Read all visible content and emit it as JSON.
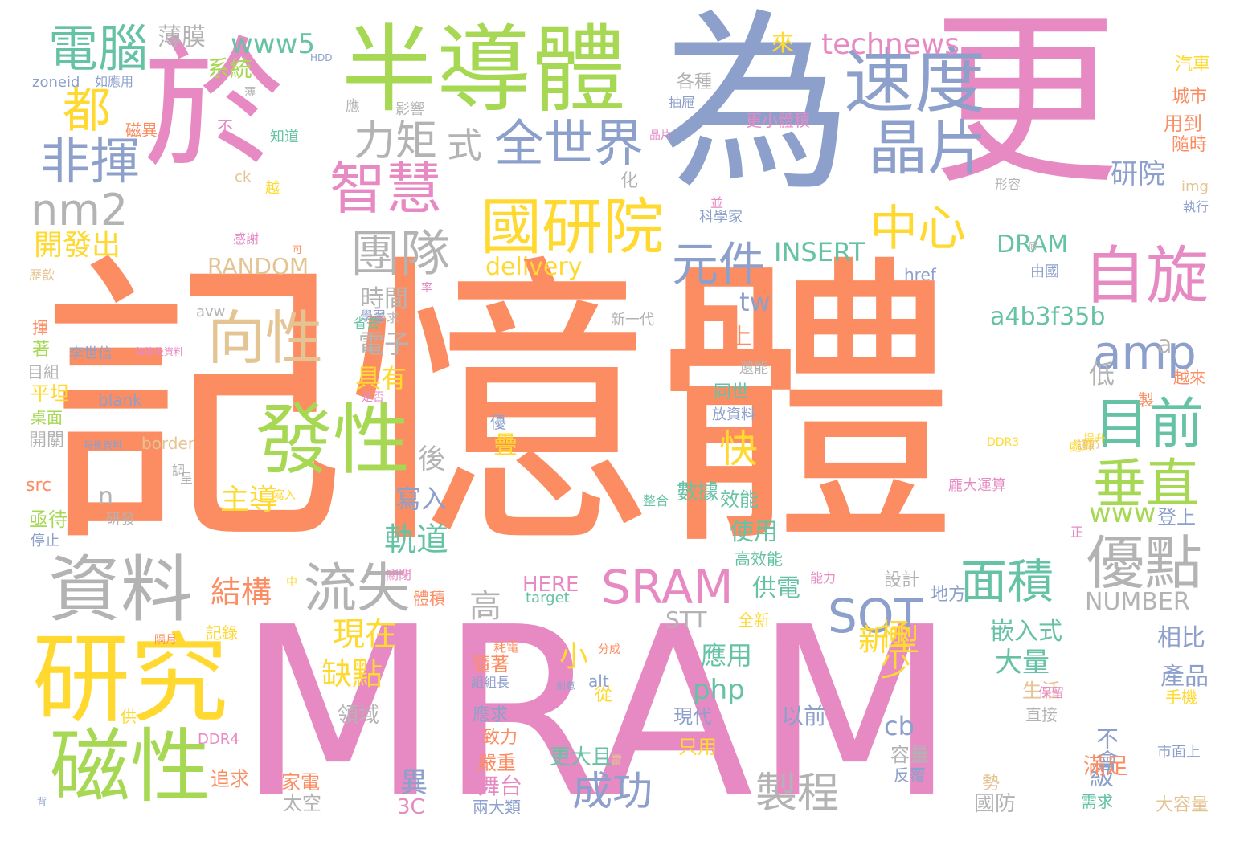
{
  "palette": {
    "orange": "#fc8d62",
    "pink": "#e78ac3",
    "blue": "#8da0cb",
    "green": "#a6d854",
    "yellow": "#ffd92f",
    "tan": "#e5c494",
    "gray": "#b3b3b3",
    "teal": "#66c2a5"
  },
  "words": [
    {
      "text": "記憶體",
      "color": "#fc8d62"
    },
    {
      "text": "MRAM",
      "color": "#e78ac3"
    },
    {
      "text": "為",
      "color": "#8da0cb"
    },
    {
      "text": "更",
      "color": "#e78ac3"
    },
    {
      "text": "於",
      "color": "#e78ac3"
    },
    {
      "text": "半導體",
      "color": "#a6d854"
    },
    {
      "text": "速度",
      "color": "#8da0cb"
    },
    {
      "text": "晶片",
      "color": "#8da0cb"
    },
    {
      "text": "電腦",
      "color": "#66c2a5"
    },
    {
      "text": "都",
      "color": "#ffd92f"
    },
    {
      "text": "非揮",
      "color": "#8da0cb"
    },
    {
      "text": "nm2",
      "color": "#b3b3b3"
    },
    {
      "text": "力矩",
      "color": "#b3b3b3"
    },
    {
      "text": "式",
      "color": "#b3b3b3"
    },
    {
      "text": "全世界",
      "color": "#8da0cb"
    },
    {
      "text": "智慧",
      "color": "#e78ac3"
    },
    {
      "text": "國研院",
      "color": "#ffd92f"
    },
    {
      "text": "自旋",
      "color": "#e78ac3"
    },
    {
      "text": "中心",
      "color": "#ffd92f"
    },
    {
      "text": "元件",
      "color": "#8da0cb"
    },
    {
      "text": "團隊",
      "color": "#b3b3b3"
    },
    {
      "text": "發性",
      "color": "#a6d854"
    },
    {
      "text": "資料",
      "color": "#b3b3b3"
    },
    {
      "text": "研究",
      "color": "#ffd92f"
    },
    {
      "text": "磁性",
      "color": "#a6d854"
    },
    {
      "text": "向性",
      "color": "#e5c494"
    },
    {
      "text": "流失",
      "color": "#b3b3b3"
    },
    {
      "text": "SRAM",
      "color": "#e78ac3"
    },
    {
      "text": "SOT",
      "color": "#8da0cb"
    },
    {
      "text": "amp",
      "color": "#8da0cb"
    },
    {
      "text": "目前",
      "color": "#66c2a5"
    },
    {
      "text": "垂直",
      "color": "#a6d854"
    },
    {
      "text": "優點",
      "color": "#b3b3b3"
    },
    {
      "text": "面積",
      "color": "#66c2a5"
    },
    {
      "text": "製程",
      "color": "#b3b3b3"
    },
    {
      "text": "成功",
      "color": "#8da0cb"
    },
    {
      "text": "快",
      "color": "#ffd92f"
    },
    {
      "text": "technews",
      "color": "#e78ac3"
    },
    {
      "text": "www5",
      "color": "#66c2a5"
    },
    {
      "text": "薄膜",
      "color": "#b3b3b3"
    },
    {
      "text": "系統",
      "color": "#a6d854"
    },
    {
      "text": "研院",
      "color": "#8da0cb"
    },
    {
      "text": "開發出",
      "color": "#ffd92f"
    },
    {
      "text": "RANDOM",
      "color": "#e5c494"
    },
    {
      "text": "delivery",
      "color": "#ffd92f"
    },
    {
      "text": "INSERT",
      "color": "#66c2a5"
    },
    {
      "text": "DRAM",
      "color": "#66c2a5"
    },
    {
      "text": "a4b3f35b",
      "color": "#66c2a5"
    },
    {
      "text": "tw",
      "color": "#8da0cb"
    },
    {
      "text": "時間",
      "color": "#b3b3b3"
    },
    {
      "text": "電子",
      "color": "#b3b3b3"
    },
    {
      "text": "具有",
      "color": "#ffd92f"
    },
    {
      "text": "主導",
      "color": "#ffd92f"
    },
    {
      "text": "軌道",
      "color": "#66c2a5"
    },
    {
      "text": "寫入",
      "color": "#8da0cb"
    },
    {
      "text": "www",
      "color": "#a6d854"
    },
    {
      "text": "新型",
      "color": "#ffd92f"
    },
    {
      "text": "極少",
      "color": "#ffd92f"
    },
    {
      "text": "結構",
      "color": "#fc8d62"
    },
    {
      "text": "現在",
      "color": "#ffd92f"
    },
    {
      "text": "缺點",
      "color": "#ffd92f"
    },
    {
      "text": "大量",
      "color": "#66c2a5"
    },
    {
      "text": "嵌入式",
      "color": "#66c2a5"
    },
    {
      "text": "STT",
      "color": "#b3b3b3"
    },
    {
      "text": "NUMBER",
      "color": "#b3b3b3"
    },
    {
      "text": "HERE",
      "color": "#e78ac3"
    },
    {
      "text": "php",
      "color": "#66c2a5"
    },
    {
      "text": "cb",
      "color": "#8da0cb"
    },
    {
      "text": "不會",
      "color": "#8da0cb"
    },
    {
      "text": "應用",
      "color": "#66c2a5"
    },
    {
      "text": "供電",
      "color": "#66c2a5"
    },
    {
      "text": "使用",
      "color": "#66c2a5"
    },
    {
      "text": "數據",
      "color": "#66c2a5"
    },
    {
      "text": "產品",
      "color": "#8da0cb"
    },
    {
      "text": "相比",
      "color": "#8da0cb"
    },
    {
      "text": "高",
      "color": "#b3b3b3"
    },
    {
      "text": "小",
      "color": "#ffd92f"
    },
    {
      "text": "後",
      "color": "#b3b3b3"
    },
    {
      "text": "低",
      "color": "#b3b3b3"
    },
    {
      "text": "上",
      "color": "#fc8d62"
    },
    {
      "text": "a",
      "color": "#b3b3b3"
    },
    {
      "text": "n",
      "color": "#b3b3b3"
    },
    {
      "text": "異",
      "color": "#8da0cb"
    },
    {
      "text": "級",
      "color": "#8da0cb"
    },
    {
      "text": "疊",
      "color": "#ffd92f"
    },
    {
      "text": "來",
      "color": "#ffd92f"
    },
    {
      "text": "汽車",
      "color": "#ffd92f"
    },
    {
      "text": "城市",
      "color": "#fc8d62"
    },
    {
      "text": "用到",
      "color": "#fc8d62"
    },
    {
      "text": "隨時",
      "color": "#fc8d62"
    },
    {
      "text": "img",
      "color": "#e5c494"
    },
    {
      "text": "執行",
      "color": "#8da0cb"
    },
    {
      "text": "href",
      "color": "#8da0cb"
    },
    {
      "text": "由國",
      "color": "#8da0cb"
    },
    {
      "text": "登上",
      "color": "#8da0cb"
    },
    {
      "text": "正",
      "color": "#e78ac3"
    },
    {
      "text": "設計",
      "color": "#b3b3b3"
    },
    {
      "text": "地方",
      "color": "#8da0cb"
    },
    {
      "text": "生活",
      "color": "#e5c494"
    },
    {
      "text": "手機",
      "color": "#ffd92f"
    },
    {
      "text": "直接",
      "color": "#b3b3b3"
    },
    {
      "text": "滿足",
      "color": "#fc8d62"
    },
    {
      "text": "需求",
      "color": "#66c2a5"
    },
    {
      "text": "國防",
      "color": "#b3b3b3"
    },
    {
      "text": "大容量",
      "color": "#e5c494"
    },
    {
      "text": "容量",
      "color": "#b3b3b3"
    },
    {
      "text": "反覆",
      "color": "#8da0cb"
    },
    {
      "text": "勢",
      "color": "#e5c494"
    },
    {
      "text": "以前",
      "color": "#8da0cb"
    },
    {
      "text": "現代",
      "color": "#8da0cb"
    },
    {
      "text": "只用",
      "color": "#ffd92f"
    },
    {
      "text": "更大且",
      "color": "#66c2a5"
    },
    {
      "text": "舞台",
      "color": "#e78ac3"
    },
    {
      "text": "兩大類",
      "color": "#8da0cb"
    },
    {
      "text": "嚴重",
      "color": "#fc8d62"
    },
    {
      "text": "致力",
      "color": "#fc8d62"
    },
    {
      "text": "應求",
      "color": "#8da0cb"
    },
    {
      "text": "隨著",
      "color": "#fc8d62"
    },
    {
      "text": "領域",
      "color": "#b3b3b3"
    },
    {
      "text": "太空",
      "color": "#b3b3b3"
    },
    {
      "text": "家電",
      "color": "#fc8d62"
    },
    {
      "text": "3C",
      "color": "#e78ac3"
    },
    {
      "text": "追求",
      "color": "#fc8d62"
    },
    {
      "text": "DDR4",
      "color": "#e78ac3"
    },
    {
      "text": "供",
      "color": "#ffd92f"
    },
    {
      "text": "src",
      "color": "#fc8d62"
    },
    {
      "text": "亟待",
      "color": "#a6d854"
    },
    {
      "text": "停止",
      "color": "#8da0cb"
    },
    {
      "text": "研發",
      "color": "#b3b3b3"
    },
    {
      "text": "開關",
      "color": "#b3b3b3"
    },
    {
      "text": "桌面",
      "color": "#a6d854"
    },
    {
      "text": "平坦",
      "color": "#ffd92f"
    },
    {
      "text": "目組",
      "color": "#b3b3b3"
    },
    {
      "text": "著",
      "color": "#a6d854"
    },
    {
      "text": "揮",
      "color": "#fc8d62"
    },
    {
      "text": "磁異",
      "color": "#fc8d62"
    },
    {
      "text": "不",
      "color": "#e78ac3"
    },
    {
      "text": "知道",
      "color": "#66c2a5"
    },
    {
      "text": "影響",
      "color": "#b3b3b3"
    },
    {
      "text": "應",
      "color": "#b3b3b3"
    },
    {
      "text": "zoneid",
      "color": "#8da0cb"
    },
    {
      "text": "如應用",
      "color": "#8da0cb"
    },
    {
      "text": "HDD",
      "color": "#8da0cb"
    },
    {
      "text": "各種",
      "color": "#b3b3b3"
    },
    {
      "text": "抽屜",
      "color": "#8da0cb"
    },
    {
      "text": "更小體積",
      "color": "#e78ac3"
    },
    {
      "text": "晶片",
      "color": "#e78ac3"
    },
    {
      "text": "形容",
      "color": "#b3b3b3"
    },
    {
      "text": "科學家",
      "color": "#8da0cb"
    },
    {
      "text": "並",
      "color": "#e78ac3"
    },
    {
      "text": "化",
      "color": "#b3b3b3"
    },
    {
      "text": "越",
      "color": "#ffd92f"
    },
    {
      "text": "ck",
      "color": "#e5c494"
    },
    {
      "text": "感謝",
      "color": "#e78ac3"
    },
    {
      "text": "歷歆",
      "color": "#e5c494"
    },
    {
      "text": "avw",
      "color": "#b3b3b3"
    },
    {
      "text": "新一代",
      "color": "#b3b3b3"
    },
    {
      "text": "尋求",
      "color": "#b3b3b3"
    },
    {
      "text": "學習",
      "color": "#8da0cb"
    },
    {
      "text": "李世信",
      "color": "#8da0cb"
    },
    {
      "text": "每筆後資料",
      "color": "#e78ac3"
    },
    {
      "text": "還能",
      "color": "#b3b3b3"
    },
    {
      "text": "同世",
      "color": "#66c2a5"
    },
    {
      "text": "越來",
      "color": "#fc8d62"
    },
    {
      "text": "製",
      "color": "#fc8d62"
    },
    {
      "text": "是否",
      "color": "#e78ac3"
    },
    {
      "text": "放資料",
      "color": "#8da0cb"
    },
    {
      "text": "blank",
      "color": "#8da0cb"
    },
    {
      "text": "border",
      "color": "#e5c494"
    },
    {
      "text": "優",
      "color": "#8da0cb"
    },
    {
      "text": "DDR3",
      "color": "#ffd92f"
    },
    {
      "text": "處理",
      "color": "#ffd92f"
    },
    {
      "text": "龐大運算",
      "color": "#e78ac3"
    },
    {
      "text": "整合",
      "color": "#66c2a5"
    },
    {
      "text": "效能",
      "color": "#66c2a5"
    },
    {
      "text": "高效能",
      "color": "#66c2a5"
    },
    {
      "text": "能力",
      "color": "#e78ac3"
    },
    {
      "text": "中",
      "color": "#ffd92f"
    },
    {
      "text": "體積",
      "color": "#fc8d62"
    },
    {
      "text": "關閉",
      "color": "#e78ac3"
    },
    {
      "text": "target",
      "color": "#66c2a5"
    },
    {
      "text": "全新",
      "color": "#ffd92f"
    },
    {
      "text": "記錄",
      "color": "#ffd92f"
    },
    {
      "text": "耗電",
      "color": "#fc8d62"
    },
    {
      "text": "隔月",
      "color": "#fc8d62"
    },
    {
      "text": "alt",
      "color": "#8da0cb"
    },
    {
      "text": "從",
      "color": "#ffd92f"
    },
    {
      "text": "分成",
      "color": "#fc8d62"
    },
    {
      "text": "組組長",
      "color": "#8da0cb"
    },
    {
      "text": "創意",
      "color": "#8da0cb"
    },
    {
      "text": "保留",
      "color": "#e78ac3"
    },
    {
      "text": "市面上",
      "color": "#8da0cb"
    },
    {
      "text": "背",
      "color": "#8da0cb"
    },
    {
      "text": "呈",
      "color": "#b3b3b3"
    },
    {
      "text": "雷",
      "color": "#e5c494"
    },
    {
      "text": "每後資料",
      "color": "#8da0cb"
    },
    {
      "text": "調",
      "color": "#b3b3b3"
    },
    {
      "text": "薄",
      "color": "#b3b3b3"
    },
    {
      "text": "調節",
      "color": "#e5c494"
    },
    {
      "text": "寫入",
      "color": "#ffd92f"
    },
    {
      "text": "可",
      "color": "#fc8d62"
    },
    {
      "text": "省去",
      "color": "#66c2a5"
    },
    {
      "text": "感",
      "color": "#b3b3b3"
    },
    {
      "text": "提升",
      "color": "#ffd92f"
    },
    {
      "text": "率",
      "color": "#e78ac3"
    }
  ]
}
